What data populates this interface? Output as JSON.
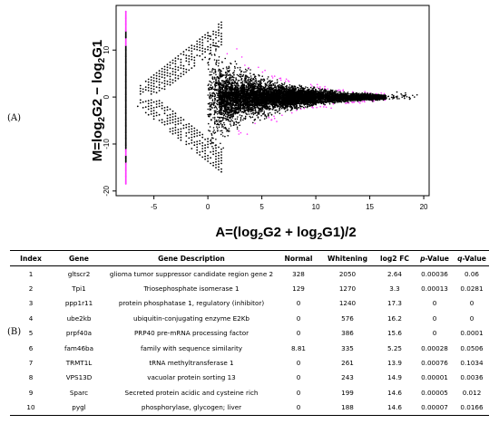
{
  "labels": {
    "panel_a": "(A)",
    "panel_b": "(B)"
  },
  "chart_data": {
    "type": "scatter",
    "title": "",
    "xlabel": "A=(log2G2 + log2G1)/2",
    "ylabel": "M=log2G2 − log2G1",
    "xlim": [
      -8.5,
      20.5
    ],
    "ylim": [
      -21,
      19.5
    ],
    "xticks": [
      -5,
      0,
      5,
      10,
      15,
      20
    ],
    "yticks": [
      -20,
      -10,
      0,
      10
    ],
    "grid": false,
    "colors": {
      "points": "#000000",
      "significant": "#ff33ff"
    }
  },
  "table": {
    "columns": [
      "Index",
      "Gene",
      "Gene Description",
      "Normal",
      "Whitening",
      "log2 FC",
      "p-Value",
      "q-Value"
    ],
    "rows": [
      [
        "1",
        "gltscr2",
        "glioma tumor suppressor candidate region gene 2",
        "328",
        "2050",
        "2.64",
        "0.00036",
        "0.06"
      ],
      [
        "2",
        "Tpi1",
        "Triosephosphate isomerase 1",
        "129",
        "1270",
        "3.3",
        "0.00013",
        "0.0281"
      ],
      [
        "3",
        "ppp1r11",
        "protein phosphatase 1, regulatory (inhibitor)",
        "0",
        "1240",
        "17.3",
        "0",
        "0"
      ],
      [
        "4",
        "ube2kb",
        "ubiquitin-conjugating enzyme E2Kb",
        "0",
        "576",
        "16.2",
        "0",
        "0"
      ],
      [
        "5",
        "prpf40a",
        "PRP40 pre-mRNA processing factor",
        "0",
        "386",
        "15.6",
        "0",
        "0.0001"
      ],
      [
        "6",
        "fam46ba",
        "family with sequence similarity",
        "8.81",
        "335",
        "5.25",
        "0.00028",
        "0.0506"
      ],
      [
        "7",
        "TRMT1L",
        "tRNA methyltransferase 1",
        "0",
        "261",
        "13.9",
        "0.00076",
        "0.1034"
      ],
      [
        "8",
        "VPS13D",
        "vacuolar protein sorting 13",
        "0",
        "243",
        "14.9",
        "0.00001",
        "0.0036"
      ],
      [
        "9",
        "Sparc",
        "Secreted protein acidic and cysteine rich",
        "0",
        "199",
        "14.6",
        "0.00005",
        "0.012"
      ],
      [
        "10",
        "pygl",
        "phosphorylase, glycogen; liver",
        "0",
        "188",
        "14.6",
        "0.00007",
        "0.0166"
      ]
    ]
  }
}
